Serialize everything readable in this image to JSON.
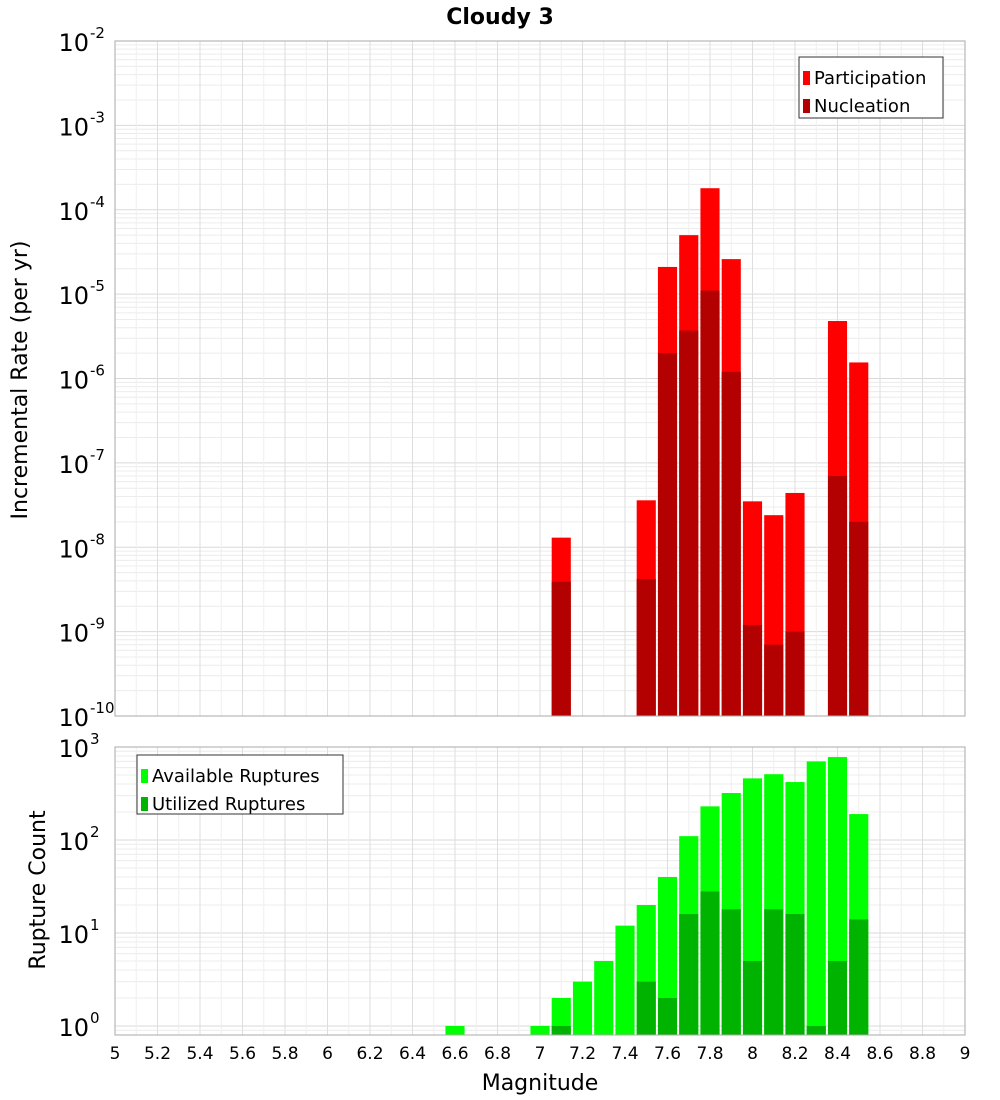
{
  "chart_data": [
    {
      "type": "bar",
      "title": "Cloudy 3",
      "ylabel": "Incremental Rate (per yr)",
      "xlim": [
        5,
        9
      ],
      "ylim": [
        1e-10,
        0.01
      ],
      "yscale": "log",
      "grid": true,
      "legend_position": "top-right",
      "bar_width": 0.09,
      "y_tick_exponents": [
        -10,
        -9,
        -8,
        -7,
        -6,
        -5,
        -4,
        -3,
        -2
      ],
      "y_tick_base": "10",
      "colors": {
        "participation": "#ff0000",
        "nucleation": "#b30000"
      },
      "x": [
        7.1,
        7.5,
        7.6,
        7.7,
        7.8,
        7.9,
        8.0,
        8.1,
        8.2,
        8.4,
        8.5
      ],
      "series": [
        {
          "name": "Participation",
          "values": [
            1.3e-08,
            3.6e-08,
            2.1e-05,
            5e-05,
            0.00018,
            2.6e-05,
            3.5e-08,
            2.4e-08,
            4.4e-08,
            4.8e-06,
            1.55e-06
          ]
        },
        {
          "name": "Nucleation",
          "values": [
            3.9e-09,
            4.2e-09,
            2e-06,
            3.7e-06,
            1.1e-05,
            1.2e-06,
            1.2e-09,
            7e-10,
            1e-09,
            7e-08,
            2e-08
          ]
        }
      ]
    },
    {
      "type": "bar",
      "xlabel": "Magnitude",
      "ylabel": "Rupture Count",
      "xlim": [
        5,
        9
      ],
      "ylim": [
        0.8,
        1000
      ],
      "yscale": "log",
      "grid": true,
      "legend_position": "top-left",
      "bar_width": 0.09,
      "x_ticks": [
        "5",
        "5.2",
        "5.4",
        "5.6",
        "5.8",
        "6",
        "6.2",
        "6.4",
        "6.6",
        "6.8",
        "7",
        "7.2",
        "7.4",
        "7.6",
        "7.8",
        "8",
        "8.2",
        "8.4",
        "8.6",
        "8.8",
        "9"
      ],
      "y_tick_exponents": [
        0,
        1,
        2,
        3
      ],
      "y_tick_base": "10",
      "colors": {
        "available": "#00ff00",
        "utilized": "#00b300"
      },
      "x": [
        6.6,
        7.0,
        7.1,
        7.2,
        7.3,
        7.4,
        7.5,
        7.6,
        7.7,
        7.8,
        7.9,
        8.0,
        8.1,
        8.2,
        8.3,
        8.4,
        8.5
      ],
      "series": [
        {
          "name": "Available Ruptures",
          "values": [
            1,
            1,
            2,
            3,
            5,
            12,
            20,
            40,
            110,
            230,
            320,
            460,
            510,
            420,
            700,
            780,
            190
          ]
        },
        {
          "name": "Utilized Ruptures",
          "values": [
            0,
            0,
            1,
            0,
            0,
            0,
            3,
            2,
            16,
            28,
            18,
            5,
            18,
            16,
            1,
            5,
            14
          ]
        }
      ]
    }
  ]
}
